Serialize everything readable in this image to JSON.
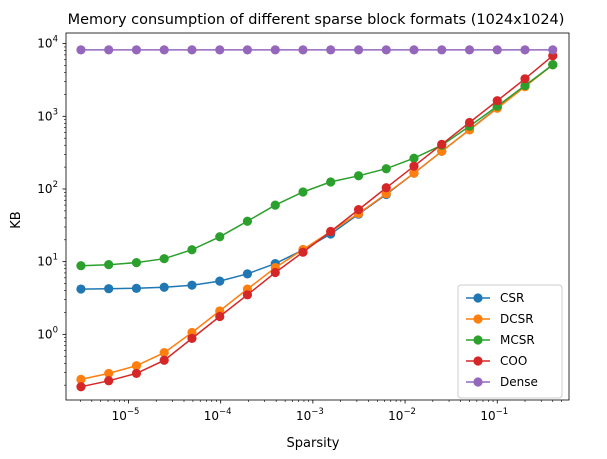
{
  "chart_data": {
    "type": "line",
    "title": "Memory consumption of different sparse block formats (1024x1024)",
    "xlabel": "Sparsity",
    "ylabel": "KB",
    "xscale": "log",
    "yscale": "log",
    "xlim": [
      2.1e-06,
      0.6
    ],
    "ylim": [
      0.125,
      14000
    ],
    "grid": false,
    "legend_position": "lower right",
    "x": [
      3.05e-06,
      6.1e-06,
      1.22e-05,
      2.44e-05,
      4.88e-05,
      9.77e-05,
      0.000195,
      0.000391,
      0.000781,
      0.00156,
      0.00313,
      0.00625,
      0.0125,
      0.025,
      0.05,
      0.1,
      0.2,
      0.4
    ],
    "series": [
      {
        "name": "CSR",
        "color": "#1f77b4",
        "values": [
          4.2,
          4.25,
          4.3,
          4.45,
          4.75,
          5.4,
          6.8,
          9.4,
          14.5,
          24,
          45,
          84,
          165,
          330,
          655,
          1310,
          2600,
          5150
        ]
      },
      {
        "name": "DCSR",
        "color": "#ff7f0e",
        "values": [
          0.24,
          0.29,
          0.37,
          0.56,
          1.06,
          2.1,
          4.2,
          8.3,
          14.7,
          26,
          46,
          86,
          165,
          330,
          650,
          1290,
          2560,
          5120
        ]
      },
      {
        "name": "MCSR",
        "color": "#2ca02c",
        "values": [
          8.8,
          9.1,
          9.7,
          11,
          14.6,
          22,
          36,
          60,
          91,
          125,
          152,
          190,
          265,
          400,
          730,
          1380,
          2650,
          5120
        ]
      },
      {
        "name": "COO",
        "color": "#d62728",
        "values": [
          0.19,
          0.23,
          0.29,
          0.44,
          0.88,
          1.76,
          3.5,
          7.1,
          13.5,
          26,
          52,
          104,
          206,
          412,
          822,
          1640,
          3280,
          6820
        ]
      },
      {
        "name": "Dense",
        "color": "#9467bd",
        "values": [
          8200,
          8200,
          8200,
          8200,
          8200,
          8200,
          8200,
          8200,
          8200,
          8200,
          8200,
          8200,
          8200,
          8200,
          8200,
          8200,
          8200,
          8200
        ]
      }
    ],
    "x_ticks": [
      {
        "value": 1e-05,
        "base": "10",
        "exp": "−5"
      },
      {
        "value": 0.0001,
        "base": "10",
        "exp": "−4"
      },
      {
        "value": 0.001,
        "base": "10",
        "exp": "−3"
      },
      {
        "value": 0.01,
        "base": "10",
        "exp": "−2"
      },
      {
        "value": 0.1,
        "base": "10",
        "exp": "−1"
      }
    ],
    "y_ticks": [
      {
        "value": 1,
        "base": "10",
        "exp": "0"
      },
      {
        "value": 10,
        "base": "10",
        "exp": "1"
      },
      {
        "value": 100,
        "base": "10",
        "exp": "2"
      },
      {
        "value": 1000,
        "base": "10",
        "exp": "3"
      },
      {
        "value": 10000,
        "base": "10",
        "exp": "4"
      }
    ]
  }
}
